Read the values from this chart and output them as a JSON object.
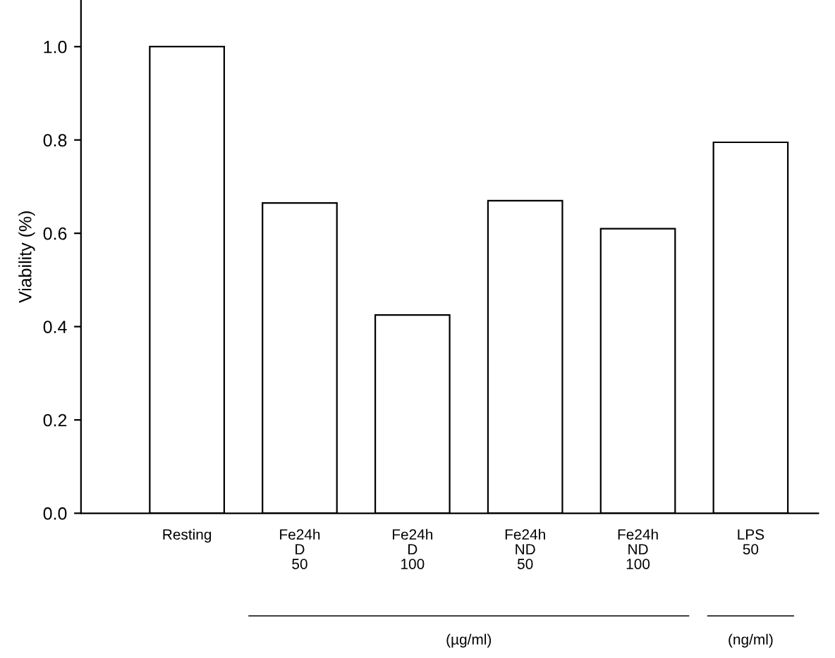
{
  "chart_data": {
    "type": "bar",
    "ylabel": "Viability (%)",
    "categories": [
      "Resting",
      "Fe24h\nD\n50",
      "Fe24h\nD\n100",
      "Fe24h\nND\n50",
      "Fe24h\nND\n100",
      "LPS\n50"
    ],
    "values": [
      1.0,
      0.665,
      0.425,
      0.67,
      0.61,
      0.795
    ],
    "color": "#ffffff",
    "ylim": [
      0,
      1.1
    ],
    "yticks": [
      {
        "value": 0,
        "label": "0.0"
      },
      {
        "value": 0.2,
        "label": "0.2"
      },
      {
        "value": 0.4,
        "label": "0.4"
      },
      {
        "value": 0.6,
        "label": "0.6"
      },
      {
        "value": 0.8,
        "label": "0.8"
      },
      {
        "value": 1.0,
        "label": "1.0"
      }
    ],
    "grid": false,
    "legend": false,
    "annotations": [
      "(µg/ml)",
      "(ng/ml)"
    ]
  }
}
